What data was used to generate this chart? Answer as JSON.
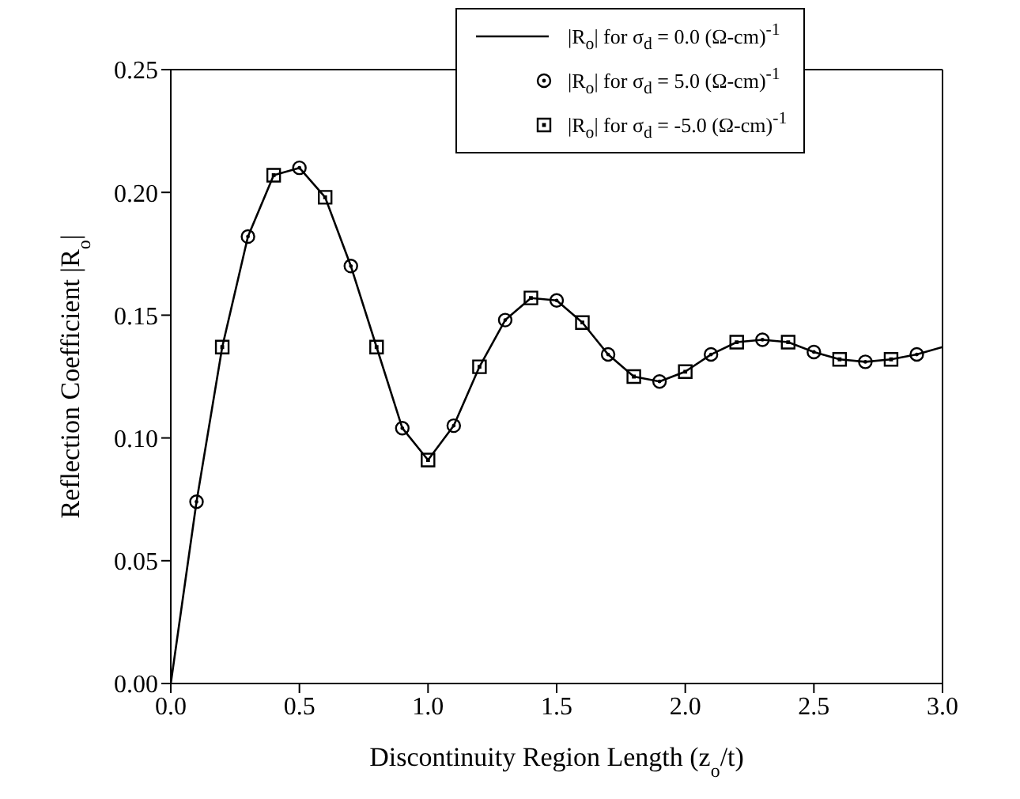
{
  "chart_data": {
    "type": "line",
    "xlabel": "Discontinuity Region Length (z$_{o}$/t)",
    "ylabel": "Reflection Coefficient |R$_{o}$|",
    "xlim": [
      0,
      3.0
    ],
    "xticks": [
      {
        "value": 0,
        "label": "0.0"
      },
      {
        "value": 0.5,
        "label": "0.5"
      },
      {
        "value": 1.0,
        "label": "1.0"
      },
      {
        "value": 1.5,
        "label": "1.5"
      },
      {
        "value": 2.0,
        "label": "2.0"
      },
      {
        "value": 2.5,
        "label": "2.5"
      },
      {
        "value": 3.0,
        "label": "3.0"
      }
    ],
    "ylim": [
      0,
      0.25
    ],
    "yticks": [
      {
        "value": 0,
        "label": "0.00"
      },
      {
        "value": 0.05,
        "label": "0.05"
      },
      {
        "value": 0.1,
        "label": "0.10"
      },
      {
        "value": 0.15,
        "label": "0.15"
      },
      {
        "value": 0.2,
        "label": "0.20"
      },
      {
        "value": 0.25,
        "label": "0.25"
      }
    ],
    "grid": false,
    "legend": "top right",
    "series": [
      {
        "name": "|R$_{o}$| for σ$_{d}$ = 0.0 (Ω-cm)$^{-1}$",
        "type": "line",
        "marker": "none",
        "line_style": "solid",
        "color": "#000000",
        "x": [
          0,
          0.1,
          0.2,
          0.3,
          0.4,
          0.5,
          0.6,
          0.7,
          0.8,
          0.9,
          1.0,
          1.1,
          1.2,
          1.3,
          1.4,
          1.5,
          1.6,
          1.7,
          1.8,
          1.9,
          2.0,
          2.1,
          2.2,
          2.3,
          2.4,
          2.5,
          2.6,
          2.7,
          2.8,
          2.9,
          3.0
        ],
        "values": [
          0,
          0.074,
          0.137,
          0.182,
          0.207,
          0.21,
          0.198,
          0.17,
          0.137,
          0.104,
          0.091,
          0.105,
          0.129,
          0.148,
          0.157,
          0.156,
          0.147,
          0.134,
          0.125,
          0.123,
          0.127,
          0.134,
          0.139,
          0.14,
          0.139,
          0.135,
          0.132,
          0.131,
          0.132,
          0.134,
          0.137
        ]
      },
      {
        "name": "|R$_{o}$| for σ$_{d}$ = 5.0 (Ω-cm)$^{-1}$",
        "type": "scatter",
        "marker": "circle",
        "color": "#000000",
        "x": [
          0.1,
          0.3,
          0.5,
          0.7,
          0.9,
          1.1,
          1.3,
          1.5,
          1.7,
          1.9,
          2.1,
          2.3,
          2.5,
          2.7,
          2.9
        ],
        "values": [
          0.074,
          0.182,
          0.21,
          0.17,
          0.104,
          0.105,
          0.148,
          0.156,
          0.134,
          0.123,
          0.134,
          0.14,
          0.135,
          0.131,
          0.134
        ]
      },
      {
        "name": "|R$_{o}$| for σ$_{d}$ = -5.0 (Ω-cm)$^{-1}$",
        "type": "scatter",
        "marker": "square",
        "color": "#000000",
        "x": [
          0.2,
          0.4,
          0.6,
          0.8,
          1.0,
          1.2,
          1.4,
          1.6,
          1.8,
          2.0,
          2.2,
          2.4,
          2.6,
          2.8
        ],
        "values": [
          0.137,
          0.207,
          0.198,
          0.137,
          0.091,
          0.129,
          0.157,
          0.147,
          0.125,
          0.127,
          0.139,
          0.139,
          0.132,
          0.132
        ]
      }
    ]
  }
}
